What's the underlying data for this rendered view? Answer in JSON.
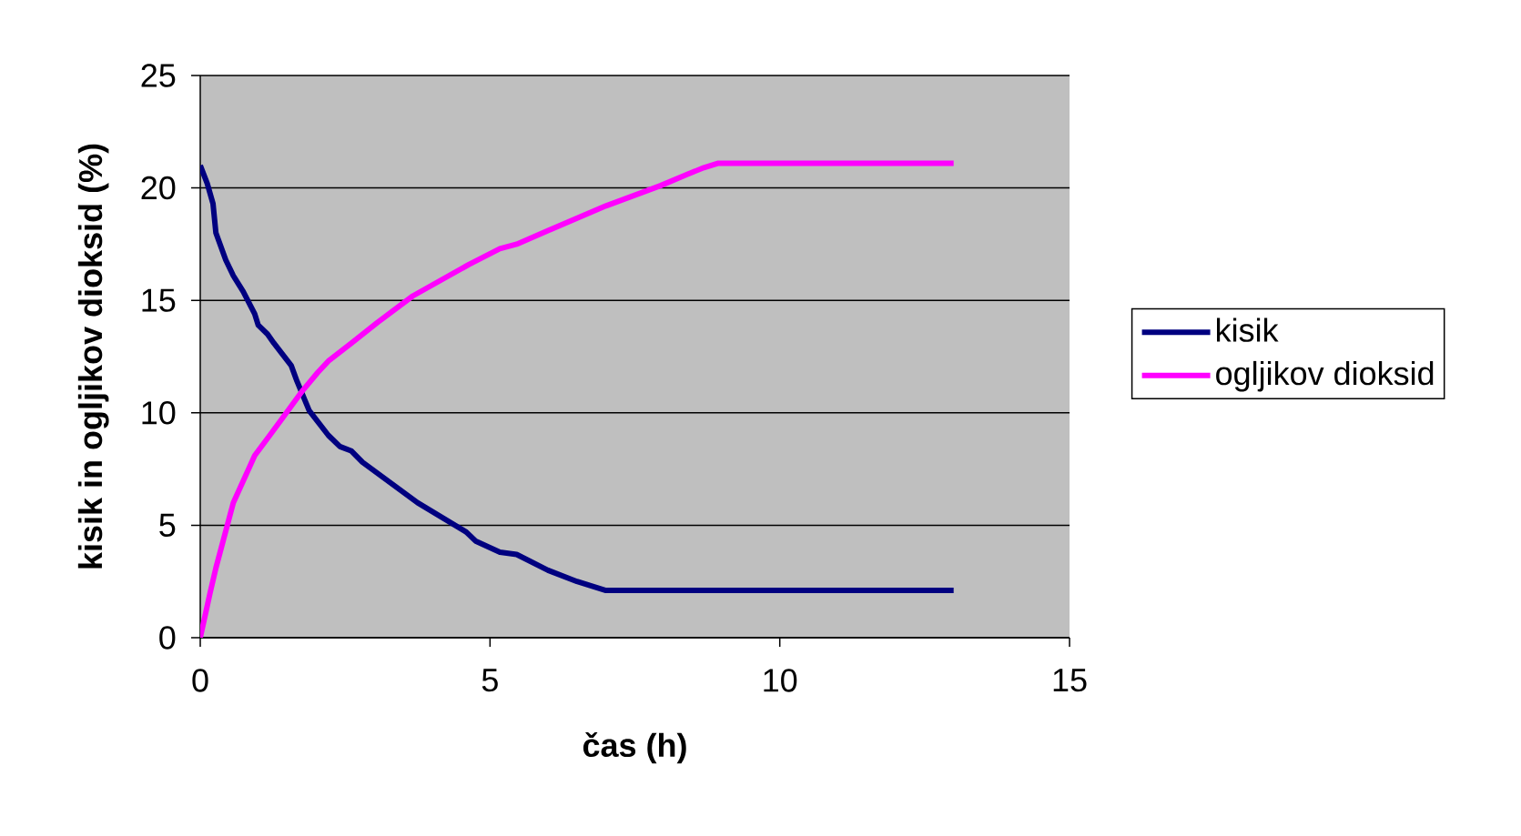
{
  "chart_data": {
    "type": "line",
    "xlabel": "čas (h)",
    "ylabel": "kisik in ogljikov dioksid (%)",
    "xlim": [
      0,
      15
    ],
    "ylim": [
      0,
      25
    ],
    "xticks": [
      0,
      5,
      10,
      15
    ],
    "yticks": [
      0,
      5,
      10,
      15,
      20,
      25
    ],
    "grid": "y",
    "legend": "right",
    "marker": "none",
    "line_style": "solid",
    "series": [
      {
        "name": "kisik",
        "color": "#000080",
        "x": [
          0,
          0.12,
          0.22,
          0.27,
          0.44,
          0.57,
          0.74,
          0.94,
          1.0,
          1.16,
          1.27,
          1.57,
          1.67,
          1.88,
          2.21,
          2.41,
          2.61,
          2.8,
          3.75,
          4.59,
          4.75,
          5.17,
          5.46,
          6.0,
          6.5,
          7.0,
          13.0
        ],
        "values": [
          21.0,
          20.2,
          19.3,
          18.0,
          16.8,
          16.1,
          15.4,
          14.4,
          13.9,
          13.5,
          13.1,
          12.1,
          11.4,
          10.1,
          9.0,
          8.5,
          8.3,
          7.8,
          6.0,
          4.7,
          4.3,
          3.8,
          3.7,
          3.0,
          2.5,
          2.1,
          2.1
        ]
      },
      {
        "name": "ogljikov dioksid",
        "color": "#ff00ff",
        "x": [
          0,
          0.17,
          0.27,
          0.57,
          0.94,
          1.2,
          1.4,
          1.77,
          2.03,
          2.21,
          2.61,
          3.05,
          3.67,
          4.64,
          5.17,
          5.46,
          6.0,
          7.0,
          7.94,
          8.4,
          8.69,
          8.94,
          13.0
        ],
        "values": [
          0,
          2.0,
          3.1,
          6.0,
          8.1,
          9.0,
          9.7,
          11.0,
          11.8,
          12.3,
          13.1,
          14.0,
          15.2,
          16.6,
          17.3,
          17.5,
          18.1,
          19.2,
          20.1,
          20.6,
          20.9,
          21.1,
          21.1
        ]
      }
    ]
  }
}
